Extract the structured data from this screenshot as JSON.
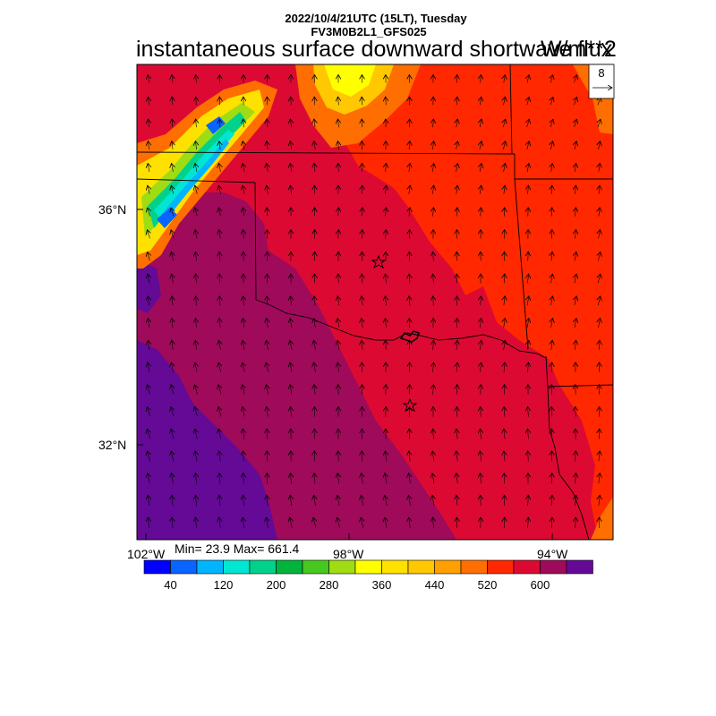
{
  "header": {
    "line1": "2022/10/4/21UTC (15LT), Tuesday",
    "line2": "FV3M0B2L1_GFS025"
  },
  "title": "instantaneous surface downward shortwave flux",
  "units": "W/m**2",
  "ref_vector": {
    "value": "8"
  },
  "axes": {
    "lat_labels": [
      "36°N",
      "32°N"
    ],
    "lon_labels": [
      "102°W",
      "98°W",
      "94°W"
    ]
  },
  "stats": {
    "text": "Min= 23.9 Max= 661.4"
  },
  "colorbar": {
    "colors": [
      "#0000ff",
      "#0a64ff",
      "#00b4ff",
      "#00e6d2",
      "#00d28c",
      "#00b43c",
      "#46c81e",
      "#a0dc14",
      "#ffff00",
      "#ffe100",
      "#ffc800",
      "#ffa000",
      "#ff6e00",
      "#ff2800",
      "#dc0a32",
      "#a00a5a",
      "#640a96"
    ],
    "labels": [
      "40",
      "120",
      "200",
      "280",
      "360",
      "440",
      "520",
      "600"
    ]
  },
  "markers": [
    "star",
    "star"
  ]
}
